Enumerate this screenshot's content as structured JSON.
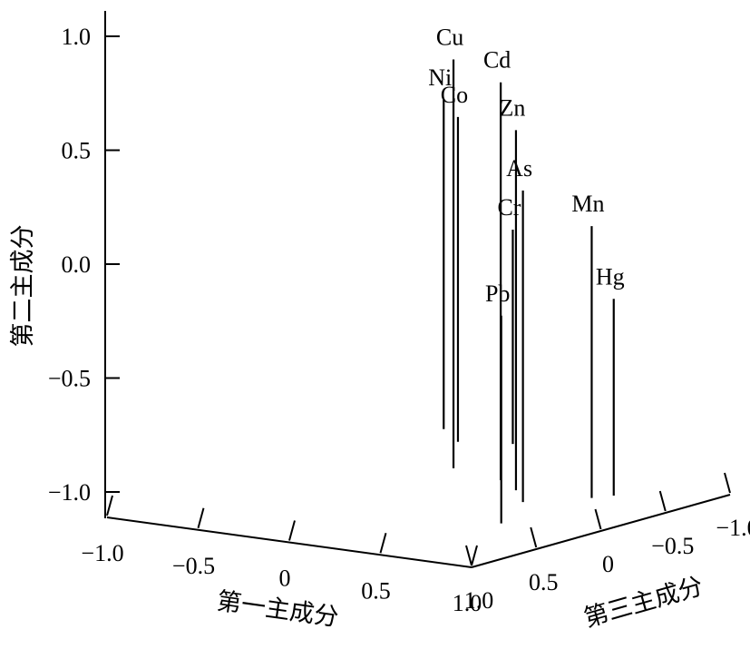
{
  "chart_data": {
    "type": "scatter",
    "projection": "3d-stem",
    "axes": {
      "x": {
        "label": "第一主成分",
        "ticks": [
          "−1.0",
          "−0.5",
          "0",
          "0.5",
          "1.0"
        ],
        "tick_values": [
          -1.0,
          -0.5,
          0,
          0.5,
          1.0
        ]
      },
      "y": {
        "label": "第三主成分",
        "ticks": [
          "1.0",
          "0.5",
          "0",
          "−0.5",
          "−1.0"
        ],
        "tick_values": [
          1.0,
          0.5,
          0,
          -0.5,
          -1.0
        ]
      },
      "z": {
        "label": "第二主成分",
        "ticks": [
          "1.0",
          "0.5",
          "0.0",
          "−0.5",
          "−1.0"
        ],
        "tick_values": [
          1.0,
          0.5,
          0.0,
          -0.5,
          -1.0
        ]
      },
      "range": [
        -1.0,
        1.0
      ]
    },
    "points": [
      {
        "label": "Ni",
        "x": -0.5,
        "y": -0.9,
        "z": 0.49
      },
      {
        "label": "Co",
        "x": -0.28,
        "y": -0.7,
        "z": 0.47
      },
      {
        "label": "Cr",
        "x": -0.05,
        "y": -0.8,
        "z": -0.03
      },
      {
        "label": "Cu",
        "x": 0.05,
        "y": -0.2,
        "z": 0.85
      },
      {
        "label": "Cd",
        "x": 0.38,
        "y": -0.1,
        "z": 0.8
      },
      {
        "label": "Zn",
        "x": 0.57,
        "y": 0.05,
        "z": 0.63
      },
      {
        "label": "As",
        "x": 0.75,
        "y": 0.25,
        "z": 0.41
      },
      {
        "label": "Pb",
        "x": 0.95,
        "y": 0.7,
        "z": -0.06
      },
      {
        "label": "Mn",
        "x": 0.95,
        "y": 0.0,
        "z": 0.23
      },
      {
        "label": "Hg",
        "x": 1.0,
        "y": -0.1,
        "z": -0.11
      }
    ],
    "grid": false,
    "legend": "none"
  }
}
